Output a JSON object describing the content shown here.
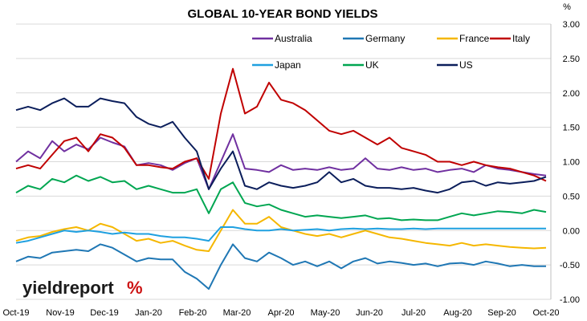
{
  "chart_data": {
    "type": "line",
    "title": "GLOBAL 10-YEAR BOND YIELDS",
    "ylabel": "%",
    "ylim": [
      -1.0,
      3.0
    ],
    "y_ticks": [
      "3.00",
      "2.50",
      "2.00",
      "1.50",
      "1.00",
      "0.50",
      "0.00",
      "-0.50",
      "-1.00"
    ],
    "y_tick_values": [
      3.0,
      2.5,
      2.0,
      1.5,
      1.0,
      0.5,
      0.0,
      -0.5,
      -1.0
    ],
    "x_tick_labels": [
      "Oct-19",
      "Nov-19",
      "Dec-19",
      "Jan-20",
      "Feb-20",
      "Mar-20",
      "Apr-20",
      "May-20",
      "Jun-20",
      "Jul-20",
      "Aug-20",
      "Sep-20",
      "Oct-20"
    ],
    "grid": "horizontal",
    "legend": "top-right",
    "series": [
      {
        "name": "Australia",
        "color": "#7030a0",
        "values": [
          1.0,
          1.15,
          1.05,
          1.3,
          1.15,
          1.25,
          1.18,
          1.35,
          1.28,
          1.22,
          0.95,
          0.98,
          0.95,
          0.88,
          0.98,
          1.05,
          0.6,
          1.0,
          1.4,
          0.9,
          0.88,
          0.85,
          0.95,
          0.88,
          0.9,
          0.88,
          0.92,
          0.88,
          0.9,
          1.05,
          0.9,
          0.88,
          0.92,
          0.88,
          0.9,
          0.85,
          0.88,
          0.9,
          0.85,
          0.95,
          0.9,
          0.88,
          0.85,
          0.82,
          0.8
        ]
      },
      {
        "name": "Germany",
        "color": "#1f77b4",
        "values": [
          -0.45,
          -0.38,
          -0.4,
          -0.32,
          -0.3,
          -0.28,
          -0.3,
          -0.2,
          -0.25,
          -0.35,
          -0.45,
          -0.4,
          -0.42,
          -0.42,
          -0.6,
          -0.7,
          -0.85,
          -0.5,
          -0.2,
          -0.4,
          -0.45,
          -0.32,
          -0.4,
          -0.5,
          -0.45,
          -0.52,
          -0.45,
          -0.55,
          -0.45,
          -0.4,
          -0.48,
          -0.45,
          -0.47,
          -0.5,
          -0.48,
          -0.52,
          -0.48,
          -0.47,
          -0.5,
          -0.45,
          -0.48,
          -0.52,
          -0.5,
          -0.52,
          -0.52
        ]
      },
      {
        "name": "France",
        "color": "#f5b700",
        "values": [
          -0.15,
          -0.1,
          -0.08,
          -0.02,
          0.02,
          0.05,
          0.0,
          0.1,
          0.05,
          -0.05,
          -0.15,
          -0.12,
          -0.18,
          -0.15,
          -0.22,
          -0.28,
          -0.3,
          0.0,
          0.3,
          0.1,
          0.1,
          0.2,
          0.05,
          0.0,
          -0.05,
          -0.08,
          -0.05,
          -0.1,
          -0.05,
          0.0,
          -0.05,
          -0.1,
          -0.12,
          -0.15,
          -0.18,
          -0.2,
          -0.22,
          -0.18,
          -0.22,
          -0.2,
          -0.22,
          -0.24,
          -0.25,
          -0.26,
          -0.25
        ]
      },
      {
        "name": "Italy",
        "color": "#c00000",
        "values": [
          0.9,
          0.95,
          0.9,
          1.1,
          1.3,
          1.35,
          1.15,
          1.4,
          1.35,
          1.2,
          0.95,
          0.95,
          0.92,
          0.9,
          1.0,
          1.05,
          0.75,
          1.7,
          2.35,
          1.7,
          1.8,
          2.15,
          1.9,
          1.85,
          1.75,
          1.6,
          1.45,
          1.4,
          1.45,
          1.35,
          1.25,
          1.35,
          1.2,
          1.15,
          1.1,
          1.0,
          1.0,
          0.95,
          1.0,
          0.95,
          0.92,
          0.9,
          0.85,
          0.8,
          0.72
        ]
      },
      {
        "name": "Japan",
        "color": "#1fa0e0",
        "values": [
          -0.18,
          -0.15,
          -0.1,
          -0.05,
          0.0,
          -0.02,
          0.0,
          -0.02,
          -0.05,
          -0.03,
          -0.05,
          -0.05,
          -0.08,
          -0.1,
          -0.1,
          -0.12,
          -0.15,
          0.05,
          0.05,
          0.02,
          0.0,
          0.0,
          0.02,
          0.0,
          0.01,
          0.02,
          0.0,
          0.02,
          0.03,
          0.02,
          0.03,
          0.02,
          0.02,
          0.03,
          0.02,
          0.03,
          0.03,
          0.03,
          0.03,
          0.03,
          0.03,
          0.03,
          0.03,
          0.03,
          0.03
        ]
      },
      {
        "name": "UK",
        "color": "#00a651",
        "values": [
          0.55,
          0.65,
          0.6,
          0.75,
          0.7,
          0.8,
          0.72,
          0.78,
          0.7,
          0.72,
          0.6,
          0.65,
          0.6,
          0.55,
          0.55,
          0.6,
          0.25,
          0.6,
          0.7,
          0.4,
          0.35,
          0.38,
          0.3,
          0.25,
          0.2,
          0.22,
          0.2,
          0.18,
          0.2,
          0.22,
          0.17,
          0.18,
          0.15,
          0.16,
          0.15,
          0.15,
          0.2,
          0.25,
          0.22,
          0.25,
          0.28,
          0.27,
          0.25,
          0.3,
          0.27
        ]
      },
      {
        "name": "US",
        "color": "#0b1e5b",
        "values": [
          1.75,
          1.8,
          1.75,
          1.85,
          1.92,
          1.8,
          1.8,
          1.92,
          1.88,
          1.85,
          1.65,
          1.55,
          1.5,
          1.58,
          1.35,
          1.15,
          0.6,
          0.9,
          1.15,
          0.65,
          0.6,
          0.7,
          0.65,
          0.62,
          0.65,
          0.7,
          0.85,
          0.7,
          0.75,
          0.65,
          0.62,
          0.62,
          0.6,
          0.62,
          0.58,
          0.55,
          0.6,
          0.7,
          0.72,
          0.65,
          0.7,
          0.68,
          0.7,
          0.72,
          0.78
        ]
      }
    ]
  },
  "logo": {
    "text": "yieldreport",
    "pct": "%"
  }
}
